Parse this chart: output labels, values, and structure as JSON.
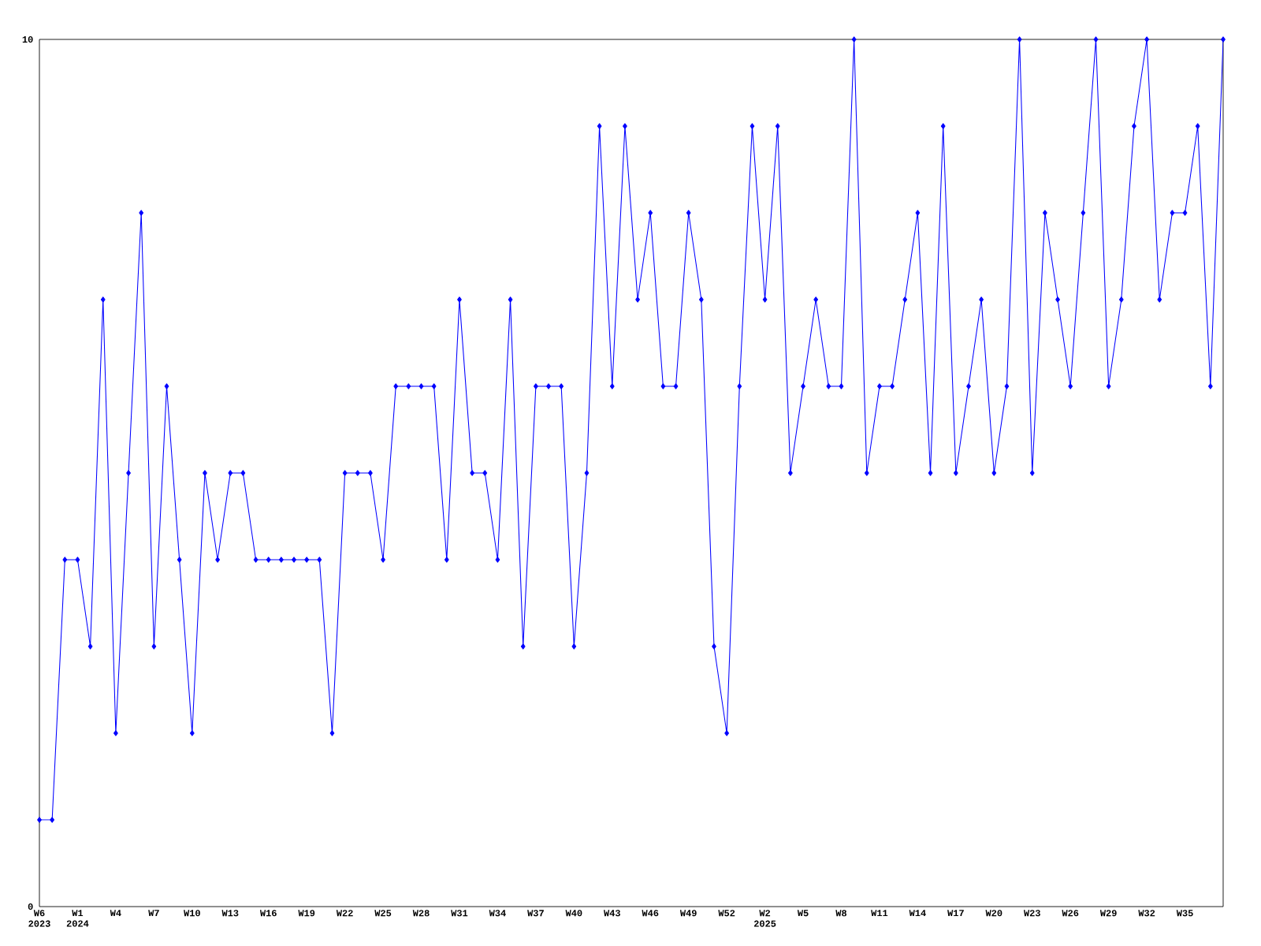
{
  "chart_data": {
    "type": "line",
    "color": "#0000ff",
    "marker": "diamond",
    "ylim": [
      0,
      10
    ],
    "yticks": [
      0,
      10
    ],
    "categories": [
      "W6 2023",
      null,
      null,
      "W1 2024",
      null,
      null,
      "W4",
      null,
      null,
      "W7",
      null,
      null,
      "W10",
      null,
      null,
      "W13",
      null,
      null,
      "W16",
      null,
      null,
      "W19",
      null,
      null,
      "W22",
      null,
      null,
      "W25",
      null,
      null,
      "W28",
      null,
      null,
      "W31",
      null,
      null,
      "W34",
      null,
      null,
      "W37",
      null,
      null,
      "W40",
      null,
      null,
      "W43",
      null,
      null,
      "W46",
      null,
      null,
      "W49",
      null,
      null,
      "W52",
      null,
      null,
      "W2 2025",
      null,
      null,
      "W5",
      null,
      null,
      "W8",
      null,
      null,
      "W11",
      null,
      null,
      "W14",
      null,
      null,
      "W17",
      null,
      null,
      "W20",
      null,
      null,
      "W23",
      null,
      null,
      "W26",
      null,
      null,
      "W29",
      null,
      null,
      "W32",
      null,
      null,
      "W35",
      null,
      null,
      null
    ],
    "values": [
      1,
      1,
      4,
      4,
      3,
      7,
      2,
      5,
      8,
      3,
      6,
      4,
      2,
      5,
      4,
      5,
      5,
      4,
      4,
      4,
      4,
      4,
      4,
      2,
      5,
      5,
      5,
      4,
      6,
      6,
      6,
      6,
      4,
      7,
      5,
      5,
      4,
      7,
      3,
      6,
      6,
      6,
      3,
      5,
      9,
      6,
      9,
      7,
      8,
      6,
      6,
      8,
      7,
      3,
      2,
      6,
      9,
      7,
      9,
      5,
      6,
      7,
      6,
      6,
      10,
      5,
      6,
      6,
      7,
      8,
      5,
      9,
      5,
      6,
      7,
      5,
      6,
      10,
      5,
      8,
      7,
      6,
      8,
      10,
      6,
      7,
      9,
      10,
      7,
      8,
      8,
      9,
      6,
      10
    ]
  }
}
